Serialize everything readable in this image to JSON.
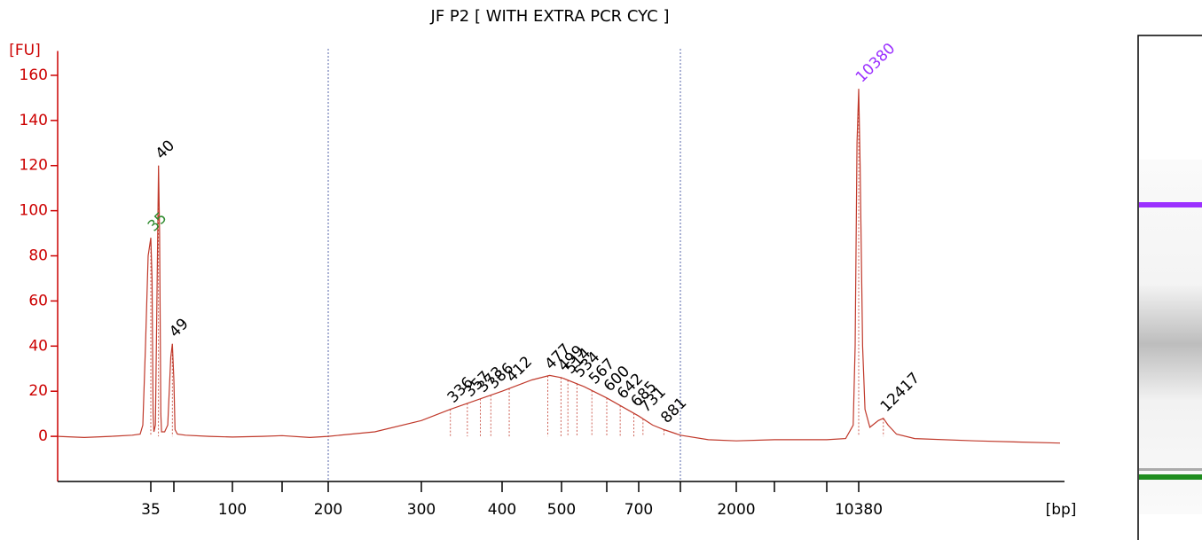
{
  "chart_data": {
    "type": "line",
    "title": "JF P2  [ WITH EXTRA PCR CYC ]",
    "y_label": "[FU]",
    "x_label": "[bp]",
    "color": "#c0392b",
    "axis_color": "#cc0000",
    "x": [
      0,
      10,
      20,
      28,
      31,
      32,
      33,
      34,
      35,
      35.8,
      36.5,
      37,
      38,
      39,
      40,
      40.7,
      41.5,
      42,
      44,
      46,
      48,
      49,
      50,
      51,
      53,
      60,
      80,
      100,
      130,
      150,
      180,
      200,
      250,
      300,
      336,
      400,
      450,
      480,
      500,
      550,
      600,
      700,
      800,
      881,
      1000,
      1500,
      2000,
      3000,
      7000,
      9000,
      9800,
      10000,
      10200,
      10380,
      10500,
      10700,
      10900,
      11300,
      12000,
      12417,
      12800,
      13500,
      15000,
      20000,
      27000
    ],
    "values": [
      0,
      -0.5,
      0,
      0.5,
      1,
      5,
      40,
      80,
      88,
      70,
      10,
      2,
      5,
      60,
      120,
      90,
      10,
      2,
      2,
      5,
      35,
      41,
      25,
      3,
      1,
      0.5,
      0,
      -0.3,
      0,
      0.3,
      -0.5,
      0,
      2,
      7,
      12,
      20,
      25,
      27,
      26,
      22,
      17,
      9,
      5,
      3,
      0.5,
      -1.5,
      -2,
      -1.5,
      -1.5,
      -1,
      5,
      40,
      130,
      154,
      120,
      40,
      12,
      4,
      7,
      8,
      5,
      1,
      -1,
      -2,
      -3
    ],
    "xlim": [
      0,
      27000
    ],
    "xticks": [
      35,
      100,
      200,
      300,
      400,
      500,
      700,
      2000,
      10380
    ],
    "x_minor_ticks": [
      50,
      150,
      600,
      1000,
      3000,
      7000
    ],
    "ylim": [
      -20,
      170
    ],
    "yticks": [
      0,
      20,
      40,
      60,
      80,
      100,
      120,
      140,
      160
    ],
    "region_markers": [
      200,
      1000
    ],
    "peaks": [
      35,
      40,
      49,
      336,
      357,
      373,
      386,
      412,
      477,
      499,
      514,
      534,
      567,
      600,
      642,
      685,
      731,
      881,
      10380,
      12417
    ],
    "peak_colors": [
      "#2e8b2e",
      "#000000",
      "#000000",
      "#000000",
      "#000000",
      "#000000",
      "#000000",
      "#000000",
      "#000000",
      "#000000",
      "#000000",
      "#000000",
      "#000000",
      "#000000",
      "#000000",
      "#000000",
      "#000000",
      "#000000",
      "#9b30ff",
      "#000000"
    ]
  }
}
